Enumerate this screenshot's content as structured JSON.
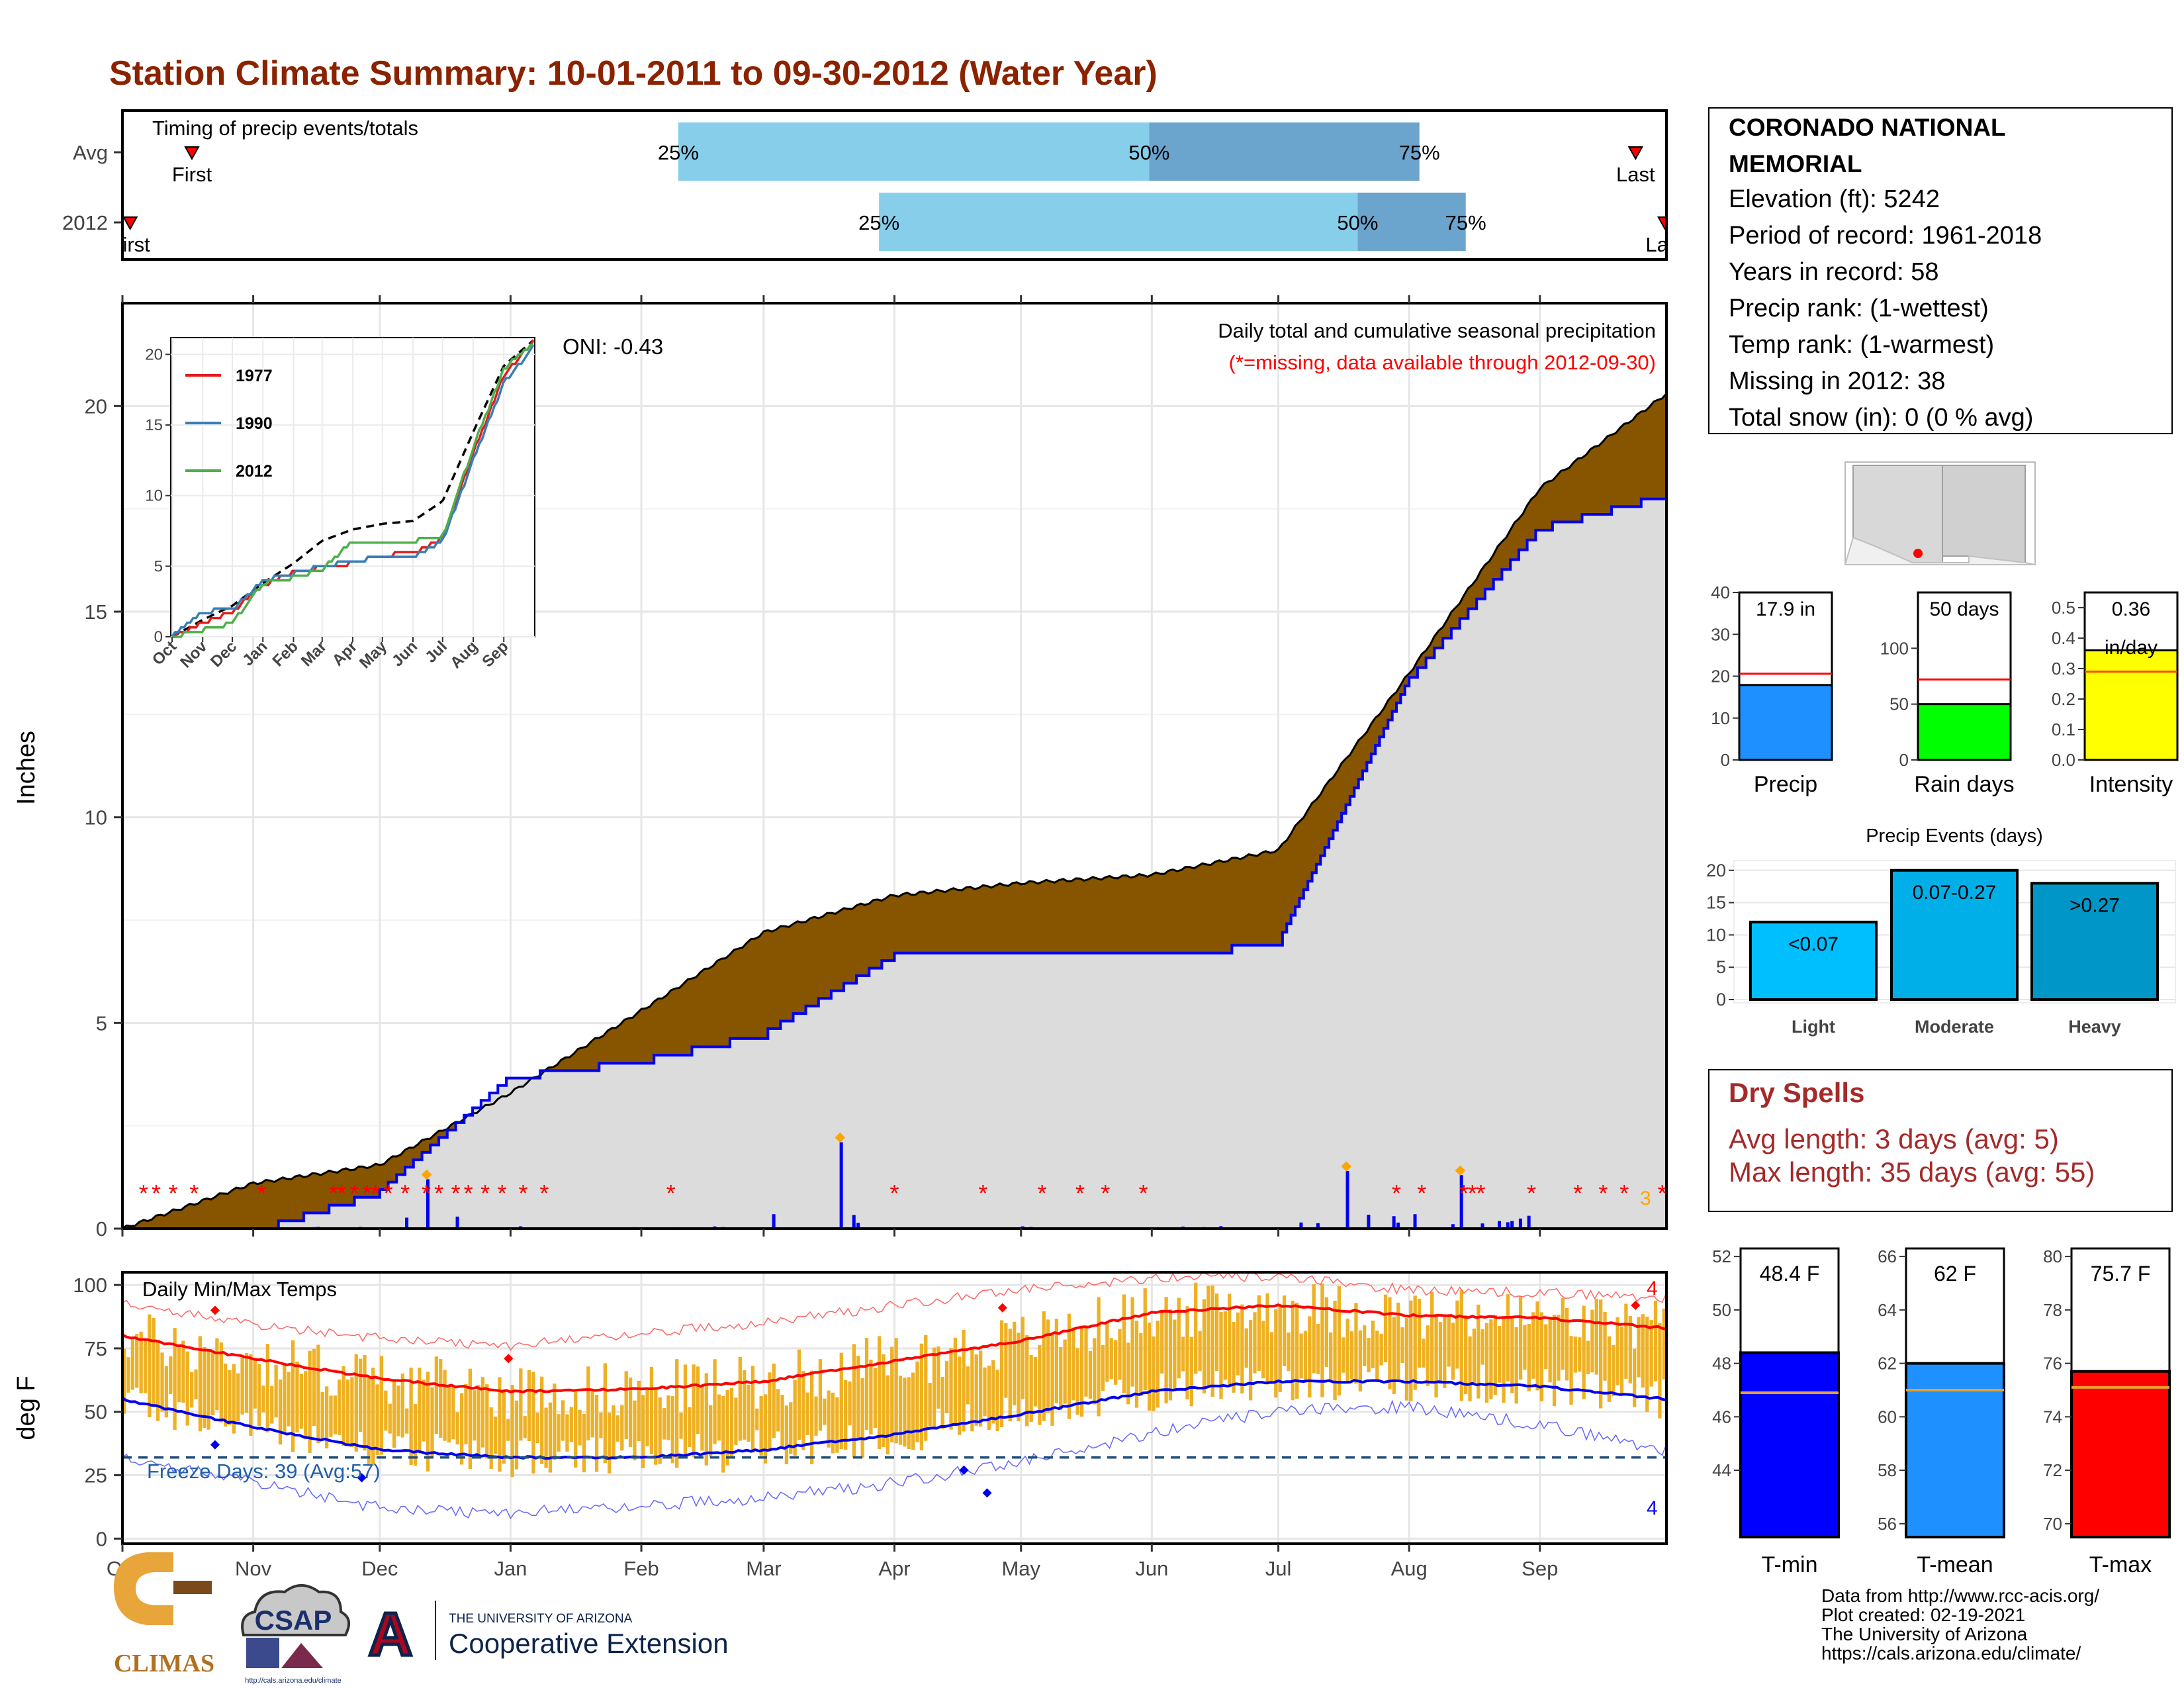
{
  "title": "Station Climate Summary: 10-01-2011 to 09-30-2012 (Water Year)",
  "colors": {
    "title": "#8b2200",
    "cum_fill": "#875500",
    "cum_2012": "#0000ee",
    "precip_bar": "#0000ee",
    "missing_star": "#ff0000",
    "temp_bar": "#eeb124",
    "avg_max": "#ff0000",
    "avg_min": "#0000ee",
    "light_blue": "#87ceeb",
    "mid_blue": "#6ba4cc",
    "freeze_line": "#1f4e79"
  },
  "timing": {
    "label": "Timing of precip events/totals",
    "rows": [
      {
        "name": "Avg",
        "first_label": "First",
        "last_label": "Last",
        "first": 0.045,
        "last": 0.98,
        "p25": 0.36,
        "p50": 0.665,
        "p75": 0.84,
        "p25_label": "25%",
        "p50_label": "50%",
        "p75_label": "75%"
      },
      {
        "name": "2012",
        "first_label": "First",
        "last_label": "Last",
        "first": 0.005,
        "last": 0.999,
        "p25": 0.49,
        "p50": 0.8,
        "p75": 0.87,
        "p25_label": "25%",
        "p50_label": "50%",
        "p75_label": "75%"
      }
    ]
  },
  "precip_panel": {
    "ylabel": "Inches",
    "yticks": [
      0,
      5,
      10,
      15,
      20
    ],
    "ylim": [
      0,
      22.5
    ],
    "caption1": "Daily total and cumulative seasonal precipitation",
    "caption2": "(*=missing, data available through 2012-09-30)",
    "oni": "ONI: -0.43",
    "corner_count": "3"
  },
  "inset": {
    "yticks": [
      0,
      5,
      10,
      15,
      20
    ],
    "months": [
      "Oct",
      "Nov",
      "Dec",
      "Jan",
      "Feb",
      "Mar",
      "Apr",
      "May",
      "Jun",
      "Jul",
      "Aug",
      "Sep"
    ],
    "legend": [
      {
        "label": "1977",
        "color": "#e41a1c"
      },
      {
        "label": "1990",
        "color": "#377eb8"
      },
      {
        "label": "2012",
        "color": "#4daf4a"
      }
    ]
  },
  "temp_panel": {
    "ylabel": "deg F",
    "label": "Daily Min/Max Temps",
    "yticks": [
      0,
      25,
      50,
      75,
      100
    ],
    "freeze_label": "Freeze Days: 39 (Avg:57)",
    "top_count": "4",
    "bottom_count": "4"
  },
  "months": [
    "Oct",
    "Nov",
    "Dec",
    "Jan",
    "Feb",
    "Mar",
    "Apr",
    "May",
    "Jun",
    "Jul",
    "Aug",
    "Sep"
  ],
  "station": {
    "name_line1": "CORONADO NATIONAL",
    "name_line2": "MEMORIAL",
    "lines": [
      "Elevation (ft): 5242",
      "Period of record: 1961-2018",
      "Years in record: 58",
      "Precip rank:  (1-wettest)",
      "Temp rank:  (1-warmest)",
      "Missing in 2012: 38",
      "Total snow (in): 0 (0 % avg)"
    ]
  },
  "summary_bars": [
    {
      "name": "Precip",
      "value_label": "17.9 in",
      "value": 17.9,
      "avg": 20.6,
      "ylim": [
        0,
        40
      ],
      "yticks": [
        "0",
        "10",
        "20",
        "30",
        "40"
      ],
      "color": "#1e90ff"
    },
    {
      "name": "Rain days",
      "value_label": "50 days",
      "value": 50,
      "avg": 72,
      "ylim": [
        0,
        150
      ],
      "yticks": [
        "0",
        "50",
        "100"
      ],
      "color": "#00ff00"
    },
    {
      "name": "Intensity",
      "value_label": "0.36",
      "value_label2": "in/day",
      "value": 0.36,
      "avg": 0.29,
      "ylim": [
        0,
        0.55
      ],
      "yticks": [
        "0.0",
        "0.1",
        "0.2",
        "0.3",
        "0.4",
        "0.5"
      ],
      "color": "#ffff00"
    }
  ],
  "events_chart": {
    "title": "Precip Events (days)",
    "yticks": [
      0,
      5,
      10,
      15,
      20
    ],
    "ylim": [
      0,
      21
    ],
    "bars": [
      {
        "category": "Light",
        "label": "<0.07",
        "value": 12,
        "color": "#00bfff"
      },
      {
        "category": "Moderate",
        "label": "0.07-0.27",
        "value": 20,
        "color": "#00afe8"
      },
      {
        "category": "Heavy",
        "label": ">0.27",
        "value": 18,
        "color": "#0096c7"
      }
    ]
  },
  "dry_spells": {
    "title": "Dry Spells",
    "line1": "Avg length: 3 days (avg: 5)",
    "line2": "Max length: 35 days (avg: 55)"
  },
  "temp_bars": [
    {
      "name": "T-min",
      "value_label": "48.4 F",
      "value": 48.4,
      "avg": 46.9,
      "ylim": [
        41.5,
        52.3
      ],
      "yticks": [
        44,
        46,
        48,
        50,
        52
      ],
      "color": "#0000ff"
    },
    {
      "name": "T-mean",
      "value_label": "62 F",
      "value": 62,
      "avg": 61,
      "ylim": [
        55.5,
        66.3
      ],
      "yticks": [
        56,
        58,
        60,
        62,
        64,
        66
      ],
      "color": "#1e90ff"
    },
    {
      "name": "T-max",
      "value_label": "75.7 F",
      "value": 75.7,
      "avg": 75.1,
      "ylim": [
        69.5,
        80.3
      ],
      "yticks": [
        70,
        72,
        74,
        76,
        78,
        80
      ],
      "color": "#ff0000"
    }
  ],
  "footer": [
    "Data from http://www.rcc-acis.org/",
    "Plot created: 02-19-2021",
    "The University of Arizona",
    "https://cals.arizona.edu/climate/"
  ],
  "logos": {
    "climas": "CLIMAS",
    "csap": "CSAP",
    "csap_url": "http://cals.arizona.edu/climate",
    "ua_small": "THE UNIVERSITY OF ARIZONA",
    "ua_big": "Cooperative Extension",
    "ua_letter": "A"
  },
  "chart_data": [
    {
      "type": "area",
      "title": "Daily total and cumulative seasonal precipitation",
      "ylabel": "Inches",
      "ylim": [
        0,
        22.5
      ],
      "x": [
        "Oct",
        "Nov",
        "Dec",
        "Jan",
        "Feb",
        "Mar",
        "Apr",
        "May",
        "Jun",
        "Jul",
        "Aug",
        "Sep",
        "Sep30"
      ],
      "series": [
        {
          "name": "Avg cumulative",
          "values": [
            0.0,
            1.1,
            1.55,
            3.3,
            5.3,
            7.2,
            8.1,
            8.4,
            8.6,
            9.2,
            13.5,
            18.0,
            20.3
          ]
        },
        {
          "name": "2012 cumulative",
          "values": [
            0.0,
            0.0,
            0.95,
            3.75,
            4.15,
            4.8,
            6.7,
            6.7,
            6.7,
            7.0,
            13.4,
            17.1,
            17.9
          ]
        }
      ],
      "daily_peaks": [
        {
          "date": "2011-12-12",
          "value": 1.2
        },
        {
          "date": "2012-03-19",
          "value": 2.1
        },
        {
          "date": "2012-07-17",
          "value": 1.4
        },
        {
          "date": "2012-08-13",
          "value": 1.3
        }
      ]
    },
    {
      "type": "line",
      "title": "",
      "ylim": [
        0,
        21
      ],
      "x": [
        "Oct",
        "Nov",
        "Dec",
        "Jan",
        "Feb",
        "Mar",
        "Apr",
        "May",
        "Jun",
        "Jul",
        "Aug",
        "Sep",
        "Sep30"
      ],
      "series": [
        {
          "name": "Avg",
          "values": [
            0,
            1.2,
            2.2,
            3.8,
            5.2,
            6.8,
            7.6,
            8.0,
            8.2,
            9.6,
            14.5,
            19.2,
            21.0
          ]
        },
        {
          "name": "1977",
          "values": [
            0,
            1.0,
            1.8,
            3.6,
            4.6,
            4.9,
            5.2,
            5.8,
            5.9,
            7.0,
            13.0,
            18.5,
            21.0
          ]
        },
        {
          "name": "1990",
          "values": [
            0,
            1.8,
            1.9,
            4.0,
            4.5,
            5.0,
            5.4,
            5.6,
            5.7,
            6.8,
            12.5,
            18.0,
            20.5
          ]
        },
        {
          "name": "2012",
          "values": [
            0,
            0.5,
            0.95,
            3.8,
            4.2,
            4.8,
            6.8,
            6.8,
            6.8,
            7.1,
            13.4,
            19.0,
            20.8
          ]
        }
      ]
    },
    {
      "type": "line",
      "title": "Daily Min/Max Temps",
      "ylabel": "deg F",
      "ylim": [
        -2,
        105
      ],
      "x": [
        "Oct",
        "Nov",
        "Dec",
        "Jan",
        "Feb",
        "Mar",
        "Apr",
        "May",
        "Jun",
        "Jul",
        "Aug",
        "Sep",
        "Sep30"
      ],
      "series": [
        {
          "name": "Avg max",
          "values": [
            80,
            71,
            63,
            58,
            59,
            62,
            70,
            78,
            89,
            92,
            88,
            87,
            83
          ]
        },
        {
          "name": "Avg min",
          "values": [
            55,
            44,
            35,
            32,
            32,
            35,
            41,
            49,
            58,
            62,
            62,
            60,
            55
          ]
        },
        {
          "name": "Record max",
          "values": [
            93,
            84,
            79,
            76,
            81,
            85,
            92,
            98,
            103,
            103,
            98,
            97,
            95
          ]
        },
        {
          "name": "Record min",
          "values": [
            32,
            22,
            12,
            10,
            13,
            16,
            22,
            30,
            42,
            50,
            52,
            45,
            35
          ]
        }
      ],
      "freeze_threshold": 32
    },
    {
      "type": "bar",
      "title": "Precip Events (days)",
      "categories": [
        "Light",
        "Moderate",
        "Heavy"
      ],
      "values": [
        12,
        20,
        18
      ]
    }
  ]
}
